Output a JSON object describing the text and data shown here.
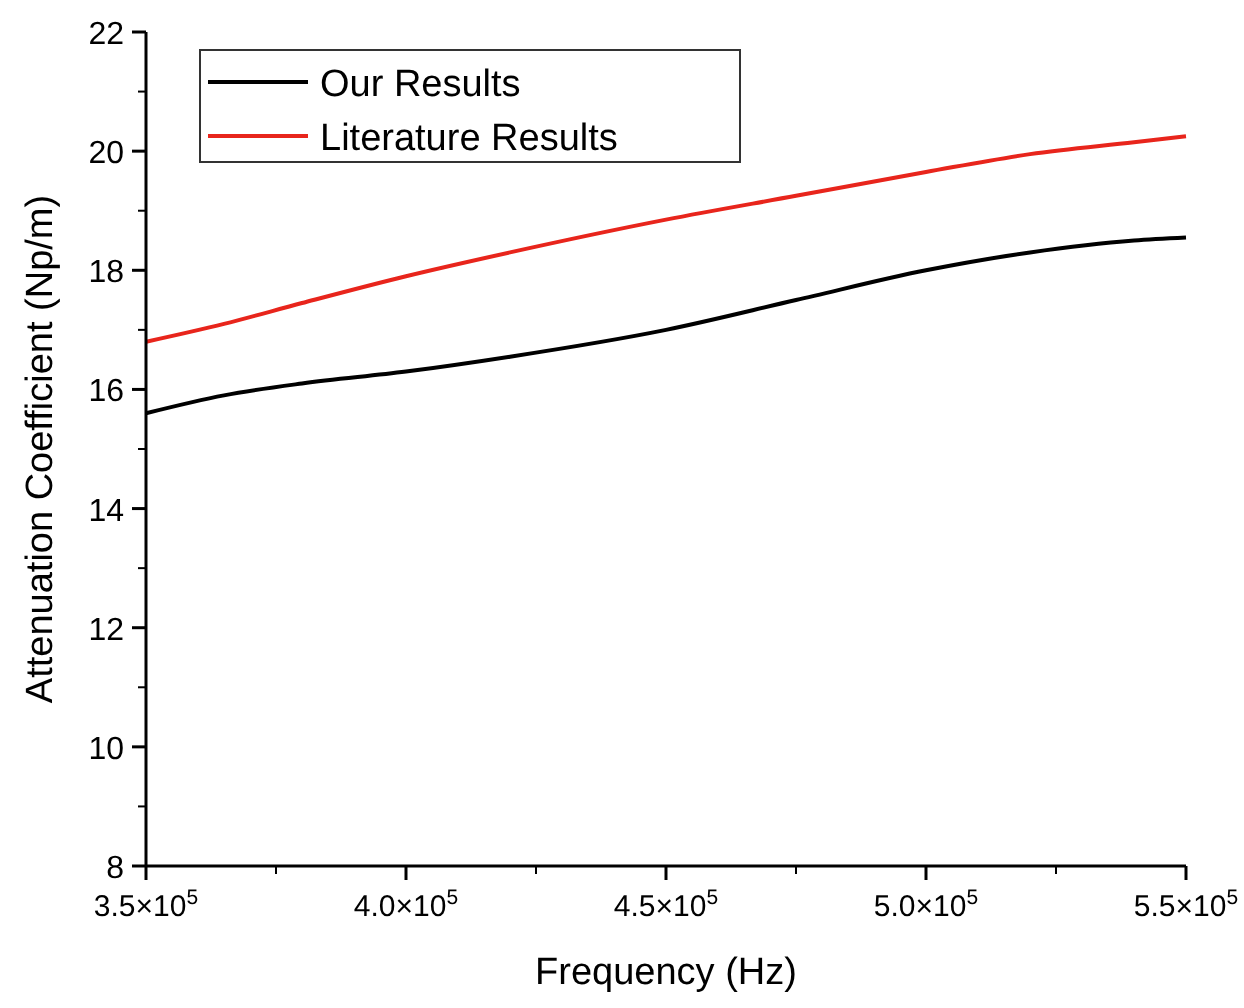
{
  "chart_data": {
    "type": "line",
    "xlabel": "Frequency (Hz)",
    "ylabel": "Attenuation Coefficient (Np/m)",
    "x": [
      350000,
      365000,
      380000,
      400000,
      420000,
      450000,
      475000,
      500000,
      520000,
      540000,
      550000
    ],
    "series": [
      {
        "name": "Our Results",
        "color": "#000000",
        "values": [
          15.6,
          15.9,
          16.1,
          16.3,
          16.55,
          17.0,
          17.5,
          18.0,
          18.3,
          18.5,
          18.55
        ]
      },
      {
        "name": "Literature Results",
        "color": "#e8251c",
        "values": [
          16.8,
          17.1,
          17.45,
          17.9,
          18.3,
          18.85,
          19.25,
          19.65,
          19.95,
          20.15,
          20.25
        ]
      }
    ],
    "xlim": [
      350000,
      550000
    ],
    "xticks": [
      {
        "value": 350000,
        "label": "3.5×10$^{5}$"
      },
      {
        "value": 400000,
        "label": "4.0×10$^{5}$"
      },
      {
        "value": 450000,
        "label": "4.5×10$^{5}$"
      },
      {
        "value": 500000,
        "label": "5.0×10$^{5}$"
      },
      {
        "value": 550000,
        "label": "5.5×10$^{5}$"
      }
    ],
    "ylim": [
      8,
      22
    ],
    "yticks": [
      8,
      10,
      12,
      14,
      16,
      18,
      20,
      22
    ],
    "legend": "top left",
    "grid": false,
    "marker": "none",
    "line_style": "solid"
  }
}
